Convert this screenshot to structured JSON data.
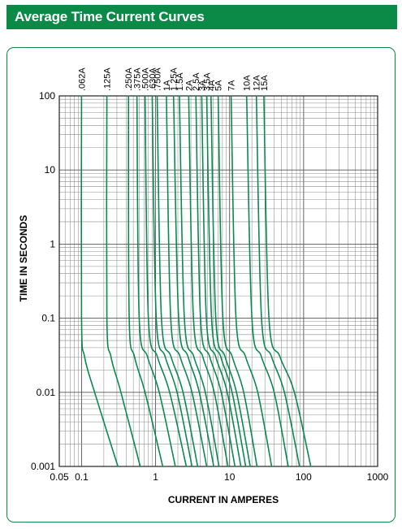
{
  "header": {
    "title": "Average Time Current Curves"
  },
  "colors": {
    "accent": "#0b8a47",
    "curve": "#0a8a52",
    "grid": "#8c8c8c"
  },
  "chart_data": {
    "type": "line",
    "title": "",
    "xlabel": "CURRENT IN AMPERES",
    "ylabel": "TIME IN SECONDS",
    "xscale": "log",
    "yscale": "log",
    "xlim": [
      0.05,
      1000
    ],
    "ylim": [
      0.001,
      100
    ],
    "grid": true,
    "x_ticks": [
      {
        "value": 0.05,
        "label": "0.05"
      },
      {
        "value": 0.1,
        "label": "0.1"
      },
      {
        "value": 1,
        "label": "1"
      },
      {
        "value": 10,
        "label": "10"
      },
      {
        "value": 100,
        "label": "100"
      },
      {
        "value": 1000,
        "label": "1000"
      }
    ],
    "y_ticks": [
      {
        "value": 0.001,
        "label": "0.001"
      },
      {
        "value": 0.01,
        "label": "0.01"
      },
      {
        "value": 0.1,
        "label": "0.1"
      },
      {
        "value": 1,
        "label": "1"
      },
      {
        "value": 10,
        "label": "10"
      },
      {
        "value": 100,
        "label": "100"
      }
    ],
    "series": [
      {
        "name": ".062A",
        "x": [
          0.1,
          0.1,
          0.11,
          0.15,
          0.31
        ],
        "y": [
          100,
          0.1,
          0.03,
          0.01,
          0.001
        ]
      },
      {
        "name": ".125A",
        "x": [
          0.22,
          0.22,
          0.25,
          0.34,
          0.62
        ],
        "y": [
          100,
          0.1,
          0.03,
          0.01,
          0.001
        ]
      },
      {
        "name": ".250A",
        "x": [
          0.43,
          0.44,
          0.52,
          0.72,
          1.25
        ],
        "y": [
          100,
          0.1,
          0.03,
          0.01,
          0.001
        ]
      },
      {
        "name": ".375A",
        "x": [
          0.56,
          0.6,
          0.78,
          1.12,
          1.85
        ],
        "y": [
          100,
          0.1,
          0.03,
          0.01,
          0.001
        ]
      },
      {
        "name": ".500A",
        "x": [
          0.72,
          0.8,
          1.06,
          1.55,
          2.6
        ],
        "y": [
          100,
          0.1,
          0.03,
          0.01,
          0.001
        ]
      },
      {
        "name": ".630A",
        "x": [
          0.9,
          1.02,
          1.35,
          1.95,
          3.1
        ],
        "y": [
          100,
          0.1,
          0.03,
          0.01,
          0.001
        ]
      },
      {
        "name": ".750A",
        "x": [
          1.05,
          1.2,
          1.62,
          2.35,
          3.7
        ],
        "y": [
          100,
          0.1,
          0.03,
          0.01,
          0.001
        ]
      },
      {
        "name": "1A",
        "x": [
          1.4,
          1.6,
          2.15,
          3.1,
          4.9
        ],
        "y": [
          100,
          0.1,
          0.03,
          0.01,
          0.001
        ]
      },
      {
        "name": "1.25A",
        "x": [
          1.75,
          2.05,
          2.75,
          3.9,
          6.1
        ],
        "y": [
          100,
          0.1,
          0.03,
          0.01,
          0.001
        ]
      },
      {
        "name": "1.5A",
        "x": [
          2.1,
          2.45,
          3.3,
          4.7,
          7.2
        ],
        "y": [
          100,
          0.1,
          0.03,
          0.01,
          0.001
        ]
      },
      {
        "name": "2A",
        "x": [
          2.8,
          3.25,
          4.35,
          6.2,
          9.5
        ],
        "y": [
          100,
          0.1,
          0.03,
          0.01,
          0.001
        ]
      },
      {
        "name": "2.5A",
        "x": [
          3.5,
          4.05,
          5.4,
          7.7,
          11.8
        ],
        "y": [
          100,
          0.1,
          0.03,
          0.01,
          0.001
        ]
      },
      {
        "name": "3A",
        "x": [
          4.2,
          4.85,
          6.5,
          9.3,
          14.2
        ],
        "y": [
          100,
          0.1,
          0.03,
          0.01,
          0.001
        ]
      },
      {
        "name": "3.5A",
        "x": [
          4.9,
          5.7,
          7.6,
          10.8,
          16.5
        ],
        "y": [
          100,
          0.1,
          0.03,
          0.01,
          0.001
        ]
      },
      {
        "name": "4A",
        "x": [
          5.6,
          6.5,
          8.7,
          12.4,
          19
        ],
        "y": [
          100,
          0.1,
          0.03,
          0.01,
          0.001
        ]
      },
      {
        "name": "5A",
        "x": [
          7,
          8.1,
          10.9,
          15.5,
          23.5
        ],
        "y": [
          100,
          0.1,
          0.03,
          0.01,
          0.001
        ]
      },
      {
        "name": "7A",
        "x": [
          10.5,
          12.2,
          16.5,
          24,
          37
        ],
        "y": [
          100,
          0.1,
          0.03,
          0.01,
          0.001
        ]
      },
      {
        "name": "10A",
        "x": [
          17,
          20,
          27,
          40,
          62
        ],
        "y": [
          100,
          0.1,
          0.03,
          0.01,
          0.001
        ]
      },
      {
        "name": "12A",
        "x": [
          23,
          27,
          37,
          55,
          88
        ],
        "y": [
          100,
          0.1,
          0.03,
          0.01,
          0.001
        ]
      },
      {
        "name": "15A",
        "x": [
          29,
          34,
          48,
          75,
          125
        ],
        "y": [
          100,
          0.1,
          0.03,
          0.01,
          0.001
        ]
      }
    ]
  }
}
